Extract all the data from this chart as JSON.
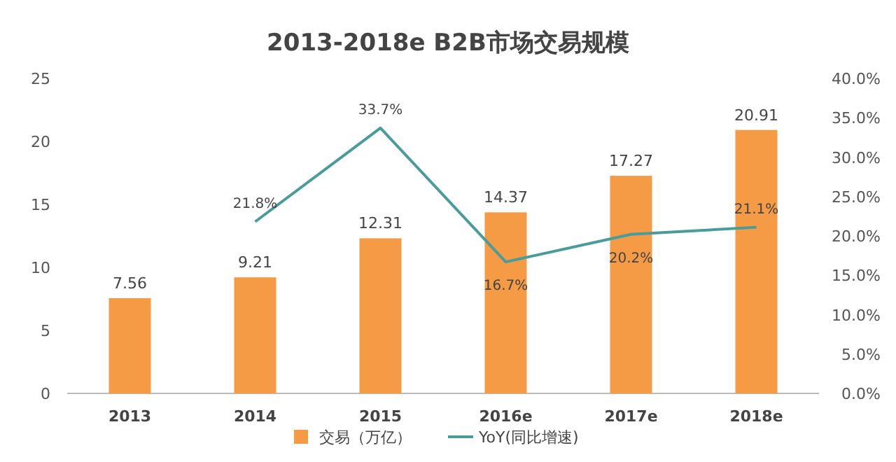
{
  "chart_data": {
    "type": "bar",
    "title": "2013-2018e B2B市场交易规模",
    "categories": [
      "2013",
      "2014",
      "2015",
      "2016e",
      "2017e",
      "2018e"
    ],
    "series": [
      {
        "name": "交易（万亿）",
        "color": "#f59a45",
        "values": [
          7.56,
          9.21,
          12.31,
          14.37,
          17.27,
          20.91
        ],
        "value_labels": [
          "7.56",
          "9.21",
          "12.31",
          "14.37",
          "17.27",
          "20.91"
        ]
      },
      {
        "name": "YoY(同比增速)",
        "type": "line",
        "axis": "y2",
        "color": "#4a9c9a",
        "values": [
          null,
          21.8,
          33.7,
          16.7,
          20.2,
          21.1
        ],
        "value_labels": [
          null,
          "21.8%",
          "33.7%",
          "16.7%",
          "20.2%",
          "21.1%"
        ]
      }
    ],
    "ylim": [
      0,
      25
    ],
    "yticks": [
      0,
      5,
      10,
      15,
      20,
      25
    ],
    "y2lim": [
      0,
      40
    ],
    "y2ticks": [
      {
        "value": 0,
        "label": "0.0%"
      },
      {
        "value": 5,
        "label": "5.0%"
      },
      {
        "value": 10,
        "label": "10.0%"
      },
      {
        "value": 15,
        "label": "15.0%"
      },
      {
        "value": 20,
        "label": "20.0%"
      },
      {
        "value": 25,
        "label": "25.0%"
      },
      {
        "value": 30,
        "label": "30.0%"
      },
      {
        "value": 35,
        "label": "35.0%"
      },
      {
        "value": 40,
        "label": "40.0%"
      }
    ],
    "grid": false,
    "legend": "bottom",
    "marker": "none",
    "line_style": "solid"
  }
}
